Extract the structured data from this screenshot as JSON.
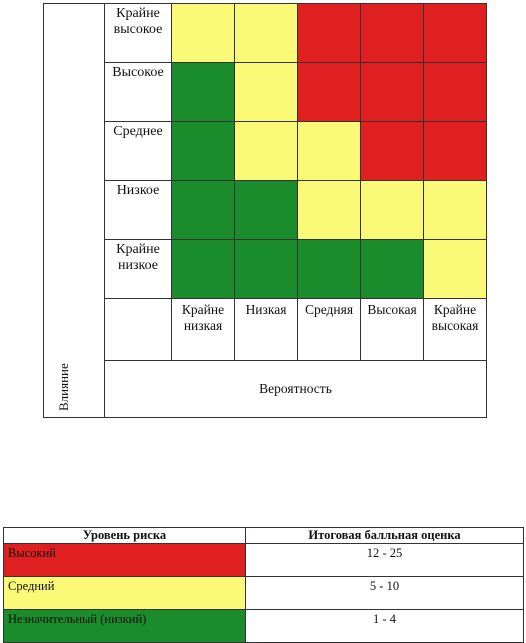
{
  "colors": {
    "red": "#e02020",
    "yellow": "#fafa78",
    "green": "#1a8c2c"
  },
  "matrix": {
    "y_axis_label": "Влияние",
    "x_axis_label": "Вероятность",
    "rows": [
      {
        "label": "Крайне высокое",
        "cells": [
          "yellow",
          "yellow",
          "red",
          "red",
          "red"
        ]
      },
      {
        "label": "Высокое",
        "cells": [
          "green",
          "yellow",
          "red",
          "red",
          "red"
        ]
      },
      {
        "label": "Среднее",
        "cells": [
          "green",
          "yellow",
          "yellow",
          "red",
          "red"
        ]
      },
      {
        "label": "Низкое",
        "cells": [
          "green",
          "green",
          "yellow",
          "yellow",
          "yellow"
        ]
      },
      {
        "label": "Крайне низкое",
        "cells": [
          "green",
          "green",
          "green",
          "green",
          "yellow"
        ]
      }
    ],
    "columns": [
      "Крайне низкая",
      "Низкая",
      "Средняя",
      "Высокая",
      "Крайне высокая"
    ]
  },
  "legend": {
    "headers": [
      "Уровень риска",
      "Итоговая балльная оценка"
    ],
    "rows": [
      {
        "level": "Высокий",
        "score": "12 - 25",
        "color": "red"
      },
      {
        "level": "Средний",
        "score": "5 - 10",
        "color": "yellow"
      },
      {
        "level": "Незначительный (низкий)",
        "score": "1 - 4",
        "color": "green"
      }
    ]
  }
}
